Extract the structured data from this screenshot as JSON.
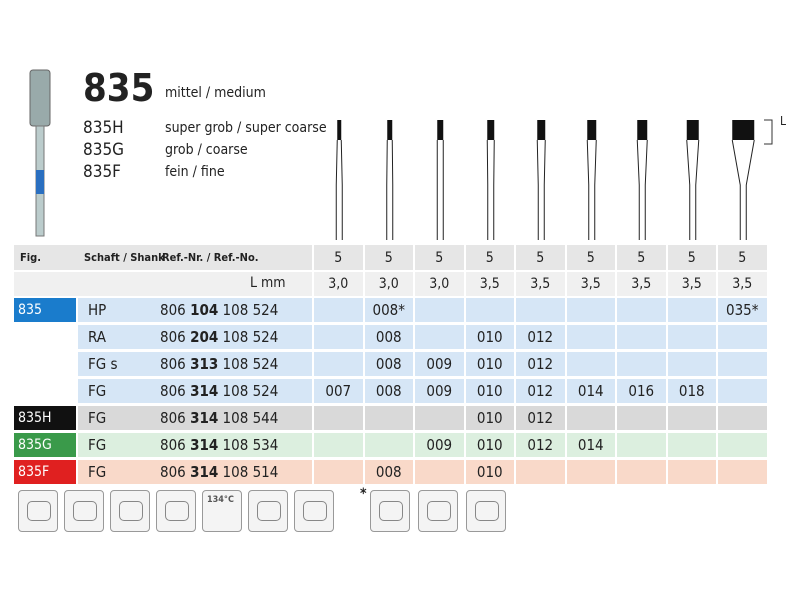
{
  "header": {
    "number": "835",
    "subtitle": "mittel / medium",
    "variants": [
      {
        "code": "835H",
        "desc": "super grob / super coarse"
      },
      {
        "code": "835G",
        "desc": "grob / coarse"
      },
      {
        "code": "835F",
        "desc": "fein / fine"
      }
    ],
    "dimension_label": "L"
  },
  "table": {
    "columns": [
      "Fig.",
      "Schaft / Shank",
      "Ref.-Nr. / Ref.-No."
    ],
    "pack": [
      5,
      5,
      5,
      5,
      5,
      5,
      5,
      5,
      5
    ],
    "length_label": "L mm",
    "length": [
      "3,0",
      "3,0",
      "3,0",
      "3,5",
      "3,5",
      "3,5",
      "3,5",
      "3,5",
      "3,5"
    ],
    "rows": [
      {
        "fig": "835",
        "shank": "HP",
        "ref": [
          "806",
          "104",
          "108 524"
        ],
        "cells": [
          null,
          "008*",
          null,
          null,
          null,
          null,
          null,
          null,
          "035*"
        ]
      },
      {
        "fig": null,
        "shank": "RA",
        "ref": [
          "806",
          "204",
          "108 524"
        ],
        "cells": [
          null,
          "008",
          null,
          "010",
          "012",
          null,
          null,
          null,
          null
        ]
      },
      {
        "fig": null,
        "shank": "FG s",
        "ref": [
          "806",
          "313",
          "108 524"
        ],
        "cells": [
          null,
          "008",
          "009",
          "010",
          "012",
          null,
          null,
          null,
          null
        ]
      },
      {
        "fig": null,
        "shank": "FG",
        "ref": [
          "806",
          "314",
          "108 524"
        ],
        "cells": [
          "007",
          "008",
          "009",
          "010",
          "012",
          "014",
          "016",
          "018",
          null
        ]
      },
      {
        "fig": "835H",
        "shank": "FG",
        "ref": [
          "806",
          "314",
          "108 544"
        ],
        "cells": [
          null,
          null,
          null,
          "010",
          "012",
          null,
          null,
          null,
          null
        ]
      },
      {
        "fig": "835G",
        "shank": "FG",
        "ref": [
          "806",
          "314",
          "108 534"
        ],
        "cells": [
          null,
          null,
          "009",
          "010",
          "012",
          "014",
          null,
          null,
          null
        ]
      },
      {
        "fig": "835F",
        "shank": "FG",
        "ref": [
          "806",
          "314",
          "108 514"
        ],
        "cells": [
          null,
          "008",
          null,
          "010",
          null,
          null,
          null,
          null,
          null
        ]
      }
    ]
  },
  "icons": {
    "temperature": "134°C",
    "note": "*"
  }
}
